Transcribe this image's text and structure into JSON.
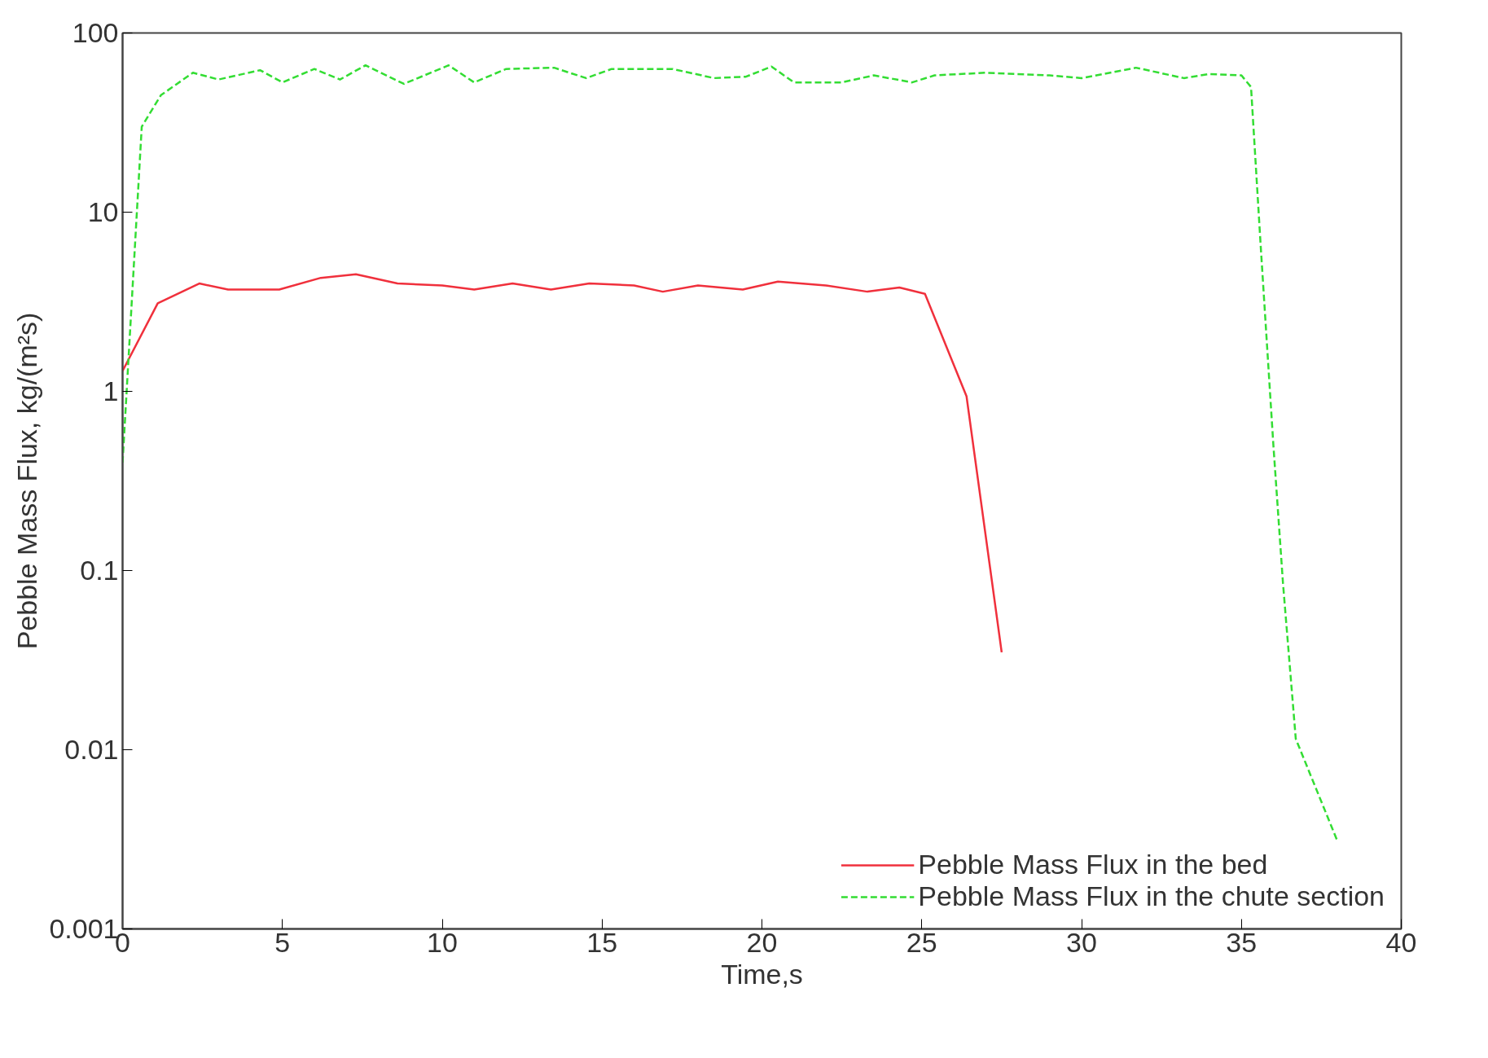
{
  "chart_data": {
    "type": "line",
    "xlabel": "Time,s",
    "ylabel": "Pebble Mass Flux, kg/(m²s)",
    "log": "y",
    "xlim": [
      0,
      40
    ],
    "xticks": [
      0,
      5,
      10,
      15,
      20,
      25,
      30,
      35,
      40
    ],
    "ylim": [
      0.001,
      100
    ],
    "yticks": [
      0.001,
      0.01,
      0.1,
      1,
      10,
      100
    ],
    "grid": false,
    "legend": "bottom right",
    "series": [
      {
        "name": "Pebble Mass Flux in the bed",
        "color": "#f0303c",
        "line_style": "solid",
        "x": [
          0,
          1.1,
          2.4,
          3.3,
          4.9,
          6.2,
          7.3,
          8.6,
          10,
          11,
          12.2,
          13.4,
          14.6,
          16,
          16.9,
          18,
          19.4,
          20.5,
          22,
          23.3,
          24.3,
          25.1,
          26.4,
          27.5
        ],
        "values": [
          1.3,
          3.1,
          4.0,
          3.7,
          3.7,
          4.3,
          4.5,
          4.0,
          3.9,
          3.7,
          4.0,
          3.7,
          4.0,
          3.9,
          3.6,
          3.9,
          3.7,
          4.1,
          3.9,
          3.6,
          3.8,
          3.5,
          0.94,
          0.035
        ]
      },
      {
        "name": "Pebble Mass Flux in the chute section",
        "color": "#33dd33",
        "line_style": "dashed",
        "x": [
          0,
          0.6,
          1.2,
          2.2,
          3,
          4.3,
          5,
          6,
          6.8,
          7.6,
          8.8,
          10.2,
          11,
          12,
          13.5,
          14.5,
          15.3,
          17.2,
          18.5,
          19.5,
          20.3,
          21,
          22.5,
          23.5,
          24.7,
          25.4,
          27,
          29,
          30,
          31.7,
          33.2,
          34,
          35,
          35.3,
          35.6,
          36.0,
          36.3,
          36.7,
          38
        ],
        "values": [
          0.4,
          30,
          45,
          60,
          55,
          62,
          53,
          63,
          55,
          66,
          52,
          66,
          53,
          63,
          64,
          56,
          63,
          63,
          56,
          57,
          65,
          53,
          53,
          58,
          53,
          58,
          60,
          58,
          56,
          64,
          56,
          59,
          58,
          50,
          6.6,
          0.5,
          0.085,
          0.0115,
          0.0031
        ]
      }
    ]
  }
}
